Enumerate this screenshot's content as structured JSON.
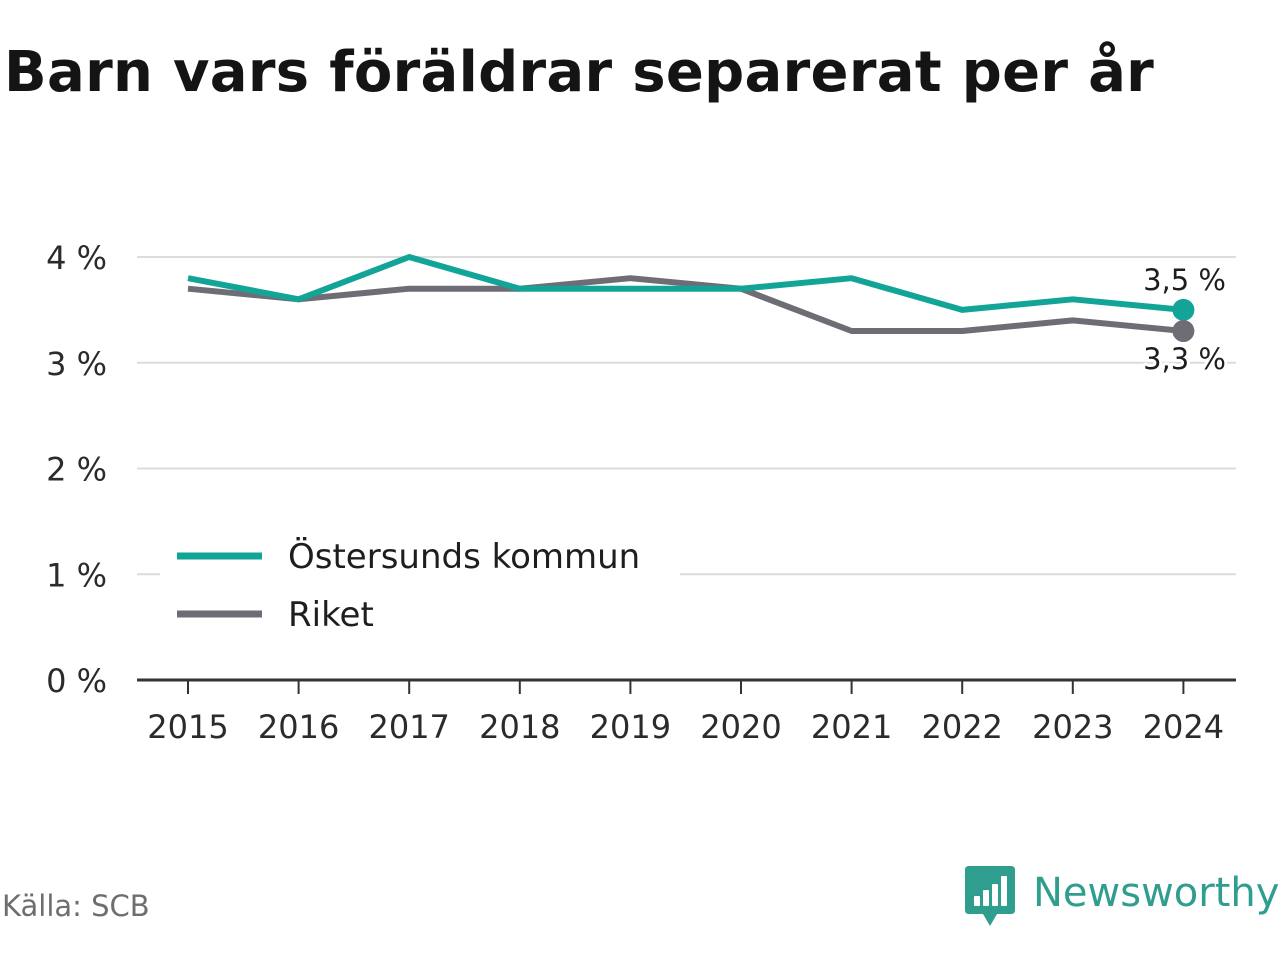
{
  "title": "Barn vars föräldrar separerat per år",
  "source": "Källa: SCB",
  "brand": {
    "name": "Newsworthy",
    "icon": "newsworthy-logo-icon",
    "color": "#2f9e8f"
  },
  "chart_data": {
    "type": "line",
    "title": "Barn vars föräldrar separerat per år",
    "xlabel": "",
    "ylabel": "",
    "categories": [
      "2015",
      "2016",
      "2017",
      "2018",
      "2019",
      "2020",
      "2021",
      "2022",
      "2023",
      "2024"
    ],
    "ylim": [
      0,
      4
    ],
    "yticks": [
      0,
      1,
      2,
      3,
      4
    ],
    "ytick_labels": [
      "0 %",
      "1 %",
      "2 %",
      "3 %",
      "4 %"
    ],
    "grid": true,
    "legend_position": "bottom-left",
    "series": [
      {
        "name": "Östersunds kommun",
        "color": "#12a597",
        "values": [
          3.8,
          3.6,
          4.0,
          3.7,
          3.7,
          3.7,
          3.8,
          3.5,
          3.6,
          3.5
        ],
        "end_label": "3,5 %"
      },
      {
        "name": "Riket",
        "color": "#6e6d76",
        "values": [
          3.7,
          3.6,
          3.7,
          3.7,
          3.8,
          3.7,
          3.3,
          3.3,
          3.4,
          3.3
        ],
        "end_label": "3,3 %"
      }
    ]
  }
}
